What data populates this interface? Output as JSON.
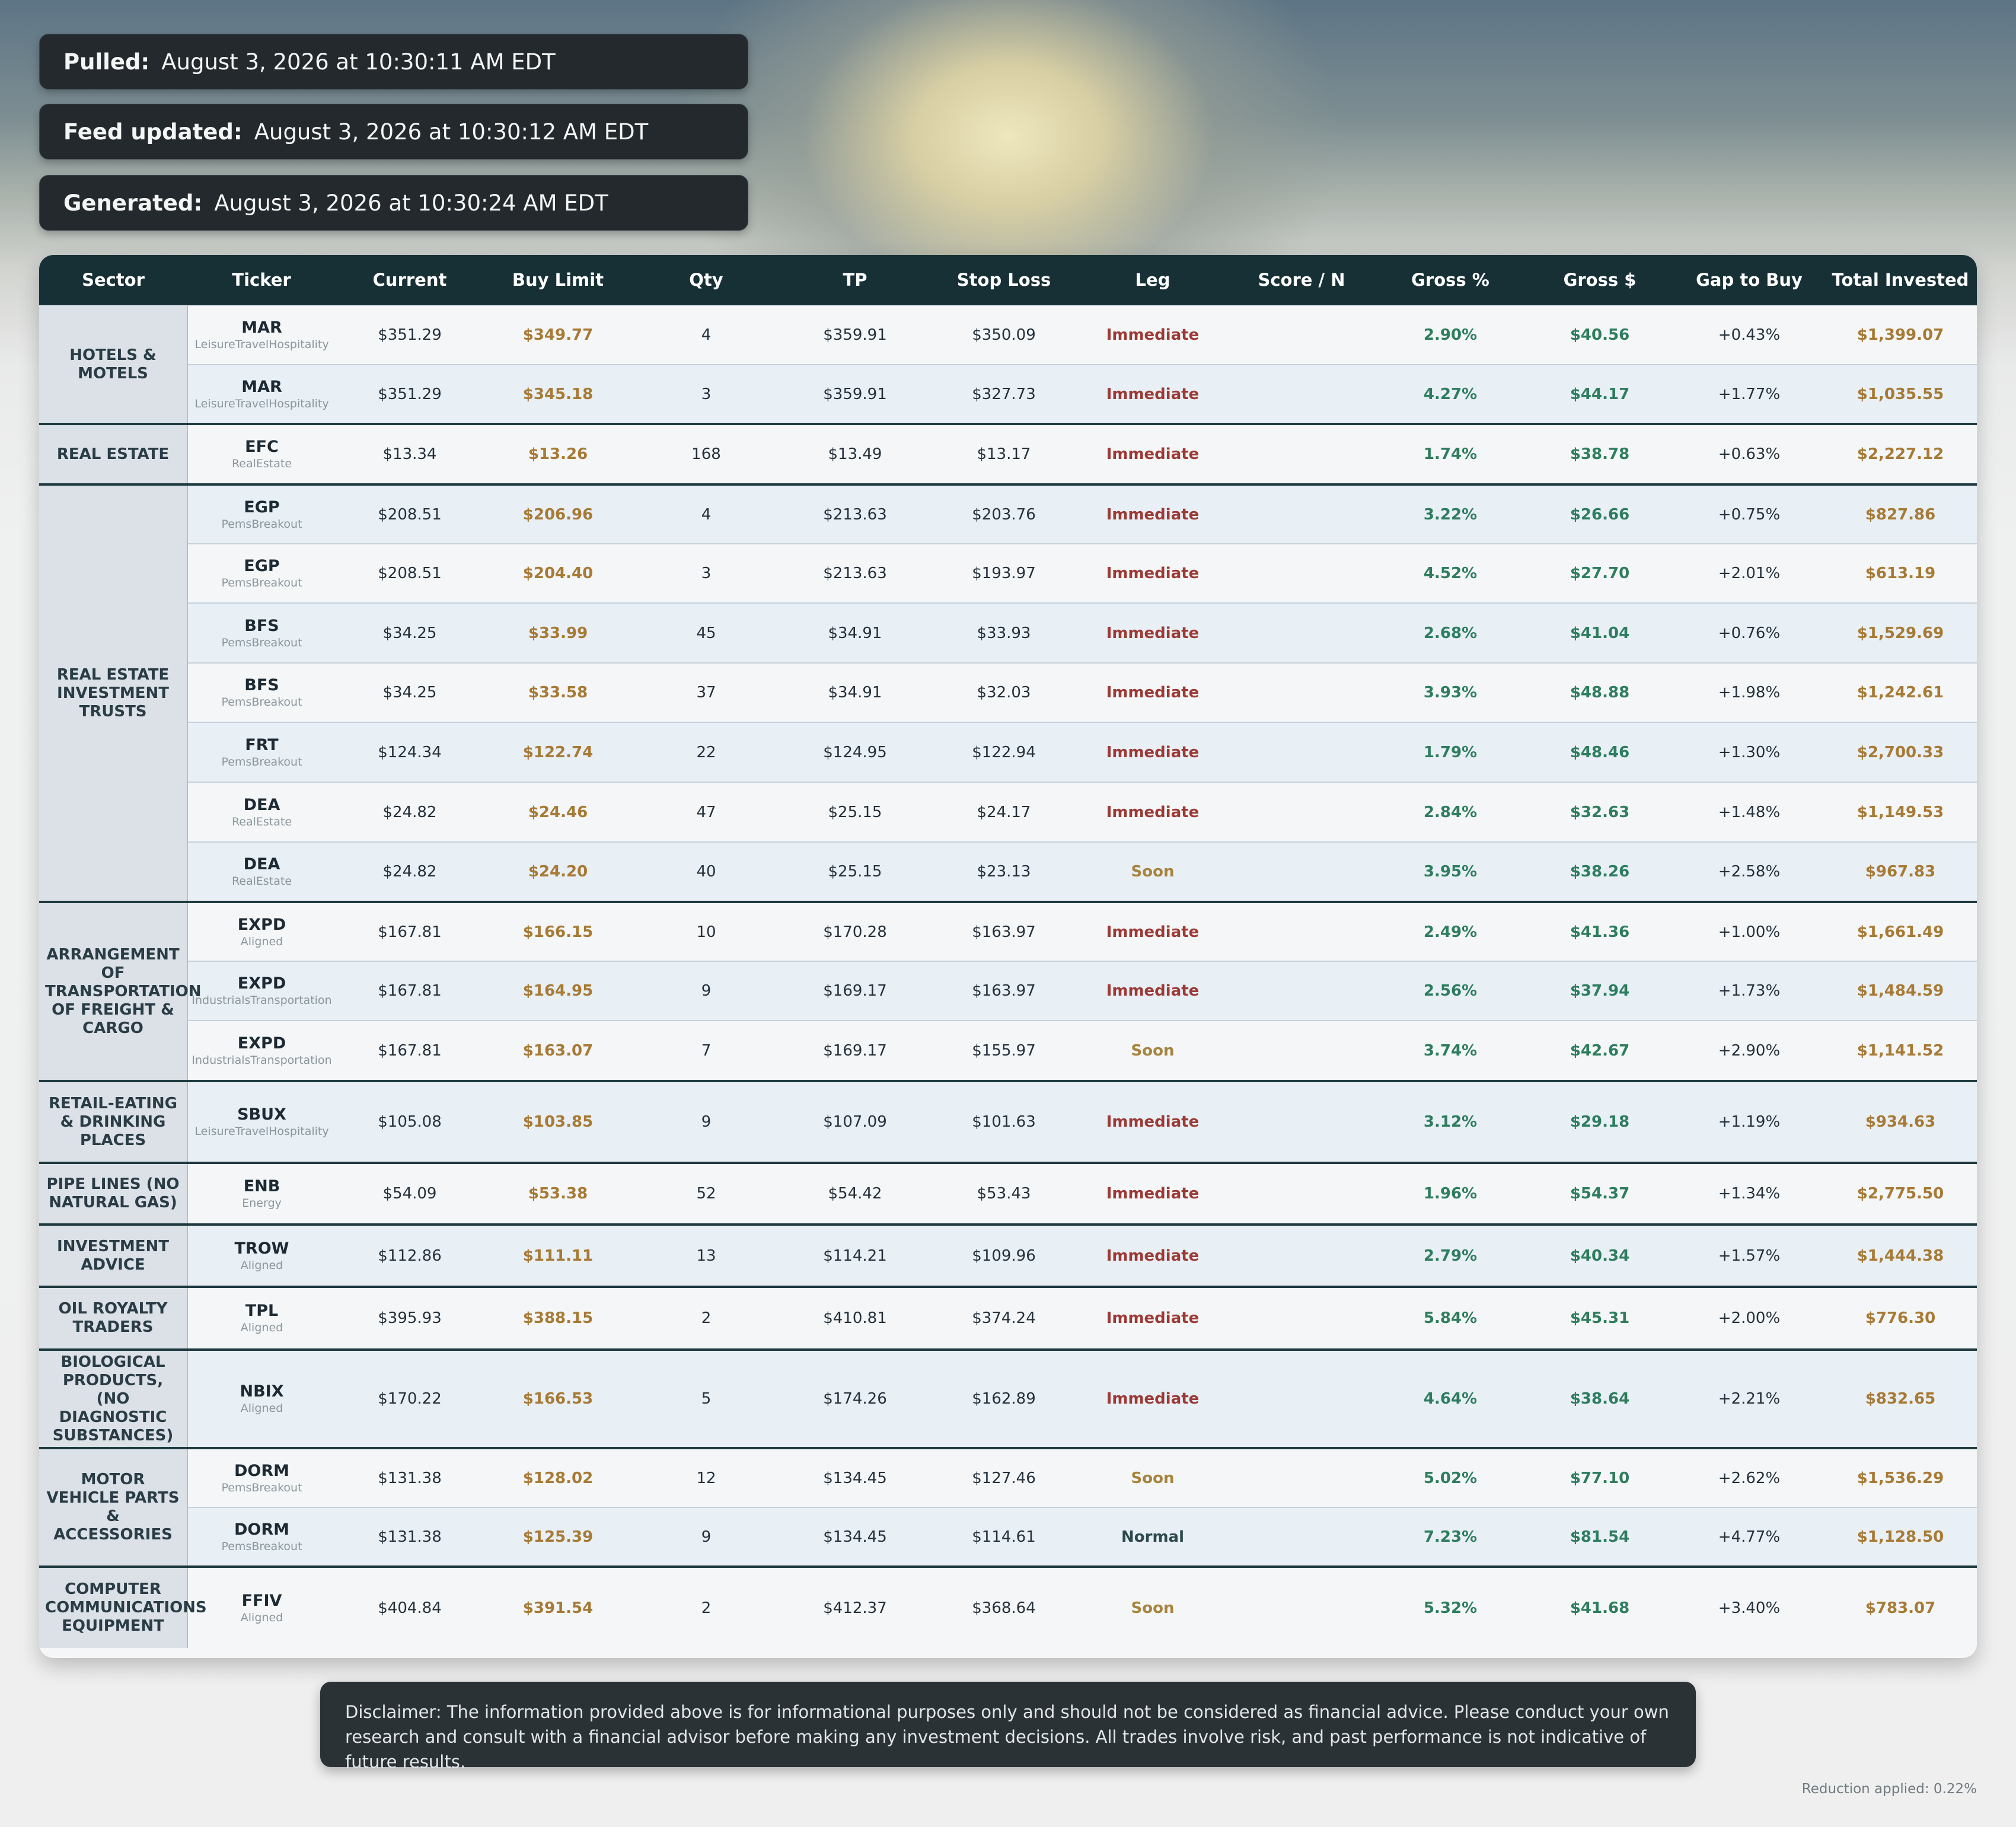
{
  "info": {
    "pulled_label": "Pulled:",
    "pulled_value": "August 3, 2026 at 10:30:11 AM EDT",
    "feed_label": "Feed updated:",
    "feed_value": "August 3, 2026 at 10:30:12 AM EDT",
    "generated_label": "Generated:",
    "generated_value": "August 3, 2026 at 10:30:24 AM EDT"
  },
  "columns": [
    "Sector",
    "Ticker",
    "Current",
    "Buy Limit",
    "Qty",
    "TP",
    "Stop Loss",
    "Leg",
    "Score / N",
    "Gross %",
    "Gross $",
    "Gap to Buy",
    "Total Invested"
  ],
  "groups": [
    {
      "sector": "HOTELS & MOTELS",
      "rows": [
        {
          "ticker": "MAR",
          "tag": "LeisureTravelHospitality",
          "current": "$351.29",
          "buy": "$349.77",
          "qty": "4",
          "tp": "$359.91",
          "sl": "$350.09",
          "leg": "Immediate",
          "score": "",
          "grossp": "2.90%",
          "grossd": "$40.56",
          "gap": "+0.43%",
          "total": "$1,399.07"
        },
        {
          "ticker": "MAR",
          "tag": "LeisureTravelHospitality",
          "current": "$351.29",
          "buy": "$345.18",
          "qty": "3",
          "tp": "$359.91",
          "sl": "$327.73",
          "leg": "Immediate",
          "score": "",
          "grossp": "4.27%",
          "grossd": "$44.17",
          "gap": "+1.77%",
          "total": "$1,035.55"
        }
      ]
    },
    {
      "sector": "REAL ESTATE",
      "rows": [
        {
          "ticker": "EFC",
          "tag": "RealEstate",
          "current": "$13.34",
          "buy": "$13.26",
          "qty": "168",
          "tp": "$13.49",
          "sl": "$13.17",
          "leg": "Immediate",
          "score": "",
          "grossp": "1.74%",
          "grossd": "$38.78",
          "gap": "+0.63%",
          "total": "$2,227.12"
        }
      ]
    },
    {
      "sector": "REAL ESTATE INVESTMENT TRUSTS",
      "rows": [
        {
          "ticker": "EGP",
          "tag": "PemsBreakout",
          "current": "$208.51",
          "buy": "$206.96",
          "qty": "4",
          "tp": "$213.63",
          "sl": "$203.76",
          "leg": "Immediate",
          "score": "",
          "grossp": "3.22%",
          "grossd": "$26.66",
          "gap": "+0.75%",
          "total": "$827.86"
        },
        {
          "ticker": "EGP",
          "tag": "PemsBreakout",
          "current": "$208.51",
          "buy": "$204.40",
          "qty": "3",
          "tp": "$213.63",
          "sl": "$193.97",
          "leg": "Immediate",
          "score": "",
          "grossp": "4.52%",
          "grossd": "$27.70",
          "gap": "+2.01%",
          "total": "$613.19"
        },
        {
          "ticker": "BFS",
          "tag": "PemsBreakout",
          "current": "$34.25",
          "buy": "$33.99",
          "qty": "45",
          "tp": "$34.91",
          "sl": "$33.93",
          "leg": "Immediate",
          "score": "",
          "grossp": "2.68%",
          "grossd": "$41.04",
          "gap": "+0.76%",
          "total": "$1,529.69"
        },
        {
          "ticker": "BFS",
          "tag": "PemsBreakout",
          "current": "$34.25",
          "buy": "$33.58",
          "qty": "37",
          "tp": "$34.91",
          "sl": "$32.03",
          "leg": "Immediate",
          "score": "",
          "grossp": "3.93%",
          "grossd": "$48.88",
          "gap": "+1.98%",
          "total": "$1,242.61"
        },
        {
          "ticker": "FRT",
          "tag": "PemsBreakout",
          "current": "$124.34",
          "buy": "$122.74",
          "qty": "22",
          "tp": "$124.95",
          "sl": "$122.94",
          "leg": "Immediate",
          "score": "",
          "grossp": "1.79%",
          "grossd": "$48.46",
          "gap": "+1.30%",
          "total": "$2,700.33"
        },
        {
          "ticker": "DEA",
          "tag": "RealEstate",
          "current": "$24.82",
          "buy": "$24.46",
          "qty": "47",
          "tp": "$25.15",
          "sl": "$24.17",
          "leg": "Immediate",
          "score": "",
          "grossp": "2.84%",
          "grossd": "$32.63",
          "gap": "+1.48%",
          "total": "$1,149.53"
        },
        {
          "ticker": "DEA",
          "tag": "RealEstate",
          "current": "$24.82",
          "buy": "$24.20",
          "qty": "40",
          "tp": "$25.15",
          "sl": "$23.13",
          "leg": "Soon",
          "score": "",
          "grossp": "3.95%",
          "grossd": "$38.26",
          "gap": "+2.58%",
          "total": "$967.83"
        }
      ]
    },
    {
      "sector": "ARRANGEMENT OF TRANSPORTATION OF FREIGHT & CARGO",
      "rows": [
        {
          "ticker": "EXPD",
          "tag": "Aligned",
          "current": "$167.81",
          "buy": "$166.15",
          "qty": "10",
          "tp": "$170.28",
          "sl": "$163.97",
          "leg": "Immediate",
          "score": "",
          "grossp": "2.49%",
          "grossd": "$41.36",
          "gap": "+1.00%",
          "total": "$1,661.49"
        },
        {
          "ticker": "EXPD",
          "tag": "IndustrialsTransportation",
          "current": "$167.81",
          "buy": "$164.95",
          "qty": "9",
          "tp": "$169.17",
          "sl": "$163.97",
          "leg": "Immediate",
          "score": "",
          "grossp": "2.56%",
          "grossd": "$37.94",
          "gap": "+1.73%",
          "total": "$1,484.59"
        },
        {
          "ticker": "EXPD",
          "tag": "IndustrialsTransportation",
          "current": "$167.81",
          "buy": "$163.07",
          "qty": "7",
          "tp": "$169.17",
          "sl": "$155.97",
          "leg": "Soon",
          "score": "",
          "grossp": "3.74%",
          "grossd": "$42.67",
          "gap": "+2.90%",
          "total": "$1,141.52"
        }
      ]
    },
    {
      "sector": "RETAIL-EATING & DRINKING PLACES",
      "rows": [
        {
          "ticker": "SBUX",
          "tag": "LeisureTravelHospitality",
          "current": "$105.08",
          "buy": "$103.85",
          "qty": "9",
          "tp": "$107.09",
          "sl": "$101.63",
          "leg": "Immediate",
          "score": "",
          "grossp": "3.12%",
          "grossd": "$29.18",
          "gap": "+1.19%",
          "total": "$934.63"
        }
      ]
    },
    {
      "sector": "PIPE LINES (NO NATURAL GAS)",
      "rows": [
        {
          "ticker": "ENB",
          "tag": "Energy",
          "current": "$54.09",
          "buy": "$53.38",
          "qty": "52",
          "tp": "$54.42",
          "sl": "$53.43",
          "leg": "Immediate",
          "score": "",
          "grossp": "1.96%",
          "grossd": "$54.37",
          "gap": "+1.34%",
          "total": "$2,775.50"
        }
      ]
    },
    {
      "sector": "INVESTMENT ADVICE",
      "rows": [
        {
          "ticker": "TROW",
          "tag": "Aligned",
          "current": "$112.86",
          "buy": "$111.11",
          "qty": "13",
          "tp": "$114.21",
          "sl": "$109.96",
          "leg": "Immediate",
          "score": "",
          "grossp": "2.79%",
          "grossd": "$40.34",
          "gap": "+1.57%",
          "total": "$1,444.38"
        }
      ]
    },
    {
      "sector": "OIL ROYALTY TRADERS",
      "rows": [
        {
          "ticker": "TPL",
          "tag": "Aligned",
          "current": "$395.93",
          "buy": "$388.15",
          "qty": "2",
          "tp": "$410.81",
          "sl": "$374.24",
          "leg": "Immediate",
          "score": "",
          "grossp": "5.84%",
          "grossd": "$45.31",
          "gap": "+2.00%",
          "total": "$776.30"
        }
      ]
    },
    {
      "sector": "BIOLOGICAL PRODUCTS, (NO DIAGNOSTIC SUBSTANCES)",
      "rows": [
        {
          "ticker": "NBIX",
          "tag": "Aligned",
          "current": "$170.22",
          "buy": "$166.53",
          "qty": "5",
          "tp": "$174.26",
          "sl": "$162.89",
          "leg": "Immediate",
          "score": "",
          "grossp": "4.64%",
          "grossd": "$38.64",
          "gap": "+2.21%",
          "total": "$832.65"
        }
      ]
    },
    {
      "sector": "MOTOR VEHICLE PARTS & ACCESSORIES",
      "rows": [
        {
          "ticker": "DORM",
          "tag": "PemsBreakout",
          "current": "$131.38",
          "buy": "$128.02",
          "qty": "12",
          "tp": "$134.45",
          "sl": "$127.46",
          "leg": "Soon",
          "score": "",
          "grossp": "5.02%",
          "grossd": "$77.10",
          "gap": "+2.62%",
          "total": "$1,536.29"
        },
        {
          "ticker": "DORM",
          "tag": "PemsBreakout",
          "current": "$131.38",
          "buy": "$125.39",
          "qty": "9",
          "tp": "$134.45",
          "sl": "$114.61",
          "leg": "Normal",
          "score": "",
          "grossp": "7.23%",
          "grossd": "$81.54",
          "gap": "+4.77%",
          "total": "$1,128.50"
        }
      ]
    },
    {
      "sector": "COMPUTER COMMUNICATIONS EQUIPMENT",
      "rows": [
        {
          "ticker": "FFIV",
          "tag": "Aligned",
          "current": "$404.84",
          "buy": "$391.54",
          "qty": "2",
          "tp": "$412.37",
          "sl": "$368.64",
          "leg": "Soon",
          "score": "",
          "grossp": "5.32%",
          "grossd": "$41.68",
          "gap": "+3.40%",
          "total": "$783.07"
        }
      ]
    }
  ],
  "disclaimer": "Disclaimer: The information provided above is for informational purposes only and should not be considered as financial advice. Please conduct your own research and consult with a financial advisor before making any investment decisions. All trades involve risk, and past performance is not indicative of future results.",
  "reduction": "Reduction applied: 0.22%"
}
